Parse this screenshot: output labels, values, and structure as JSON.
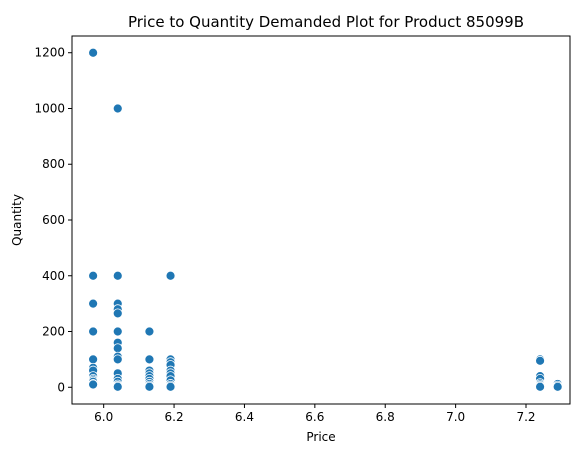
{
  "chart_data": {
    "type": "scatter",
    "title": "Price to Quantity Demanded Plot for Product 85099B",
    "xlabel": "Price",
    "ylabel": "Quantity",
    "xlim": [
      5.91,
      7.325
    ],
    "ylim": [
      -60,
      1260
    ],
    "xticks": [
      6.0,
      6.2,
      6.4,
      6.6,
      6.8,
      7.0,
      7.2
    ],
    "xtick_labels": [
      "6.0",
      "6.2",
      "6.4",
      "6.6",
      "6.8",
      "7.0",
      "7.2"
    ],
    "yticks": [
      0,
      200,
      400,
      600,
      800,
      1000,
      1200
    ],
    "ytick_labels": [
      "0",
      "200",
      "400",
      "600",
      "800",
      "1000",
      "1200"
    ],
    "grid": false,
    "legend": "none",
    "color": "#1f77b4",
    "series": [
      {
        "points": [
          [
            5.97,
            1200
          ],
          [
            5.97,
            400
          ],
          [
            5.97,
            300
          ],
          [
            5.97,
            200
          ],
          [
            5.97,
            100
          ],
          [
            5.97,
            70
          ],
          [
            5.97,
            60
          ],
          [
            5.97,
            40
          ],
          [
            5.97,
            30
          ],
          [
            5.97,
            25
          ],
          [
            5.97,
            20
          ],
          [
            5.97,
            12
          ],
          [
            5.97,
            10
          ],
          [
            6.04,
            1000
          ],
          [
            6.04,
            400
          ],
          [
            6.04,
            300
          ],
          [
            6.04,
            280
          ],
          [
            6.04,
            265
          ],
          [
            6.04,
            200
          ],
          [
            6.04,
            160
          ],
          [
            6.04,
            140
          ],
          [
            6.04,
            110
          ],
          [
            6.04,
            100
          ],
          [
            6.04,
            50
          ],
          [
            6.04,
            30
          ],
          [
            6.04,
            20
          ],
          [
            6.04,
            10
          ],
          [
            6.04,
            5
          ],
          [
            6.04,
            2
          ],
          [
            6.13,
            200
          ],
          [
            6.13,
            100
          ],
          [
            6.13,
            60
          ],
          [
            6.13,
            50
          ],
          [
            6.13,
            40
          ],
          [
            6.13,
            30
          ],
          [
            6.13,
            20
          ],
          [
            6.13,
            12
          ],
          [
            6.13,
            6
          ],
          [
            6.13,
            2
          ],
          [
            6.19,
            400
          ],
          [
            6.19,
            100
          ],
          [
            6.19,
            90
          ],
          [
            6.19,
            80
          ],
          [
            6.19,
            60
          ],
          [
            6.19,
            50
          ],
          [
            6.19,
            40
          ],
          [
            6.19,
            25
          ],
          [
            6.19,
            12
          ],
          [
            6.19,
            6
          ],
          [
            6.19,
            2
          ],
          [
            7.24,
            100
          ],
          [
            7.24,
            95
          ],
          [
            7.24,
            40
          ],
          [
            7.24,
            30
          ],
          [
            7.24,
            15
          ],
          [
            7.24,
            10
          ],
          [
            7.24,
            5
          ],
          [
            7.24,
            2
          ],
          [
            7.29,
            12
          ],
          [
            7.29,
            6
          ],
          [
            7.29,
            2
          ]
        ]
      }
    ]
  }
}
